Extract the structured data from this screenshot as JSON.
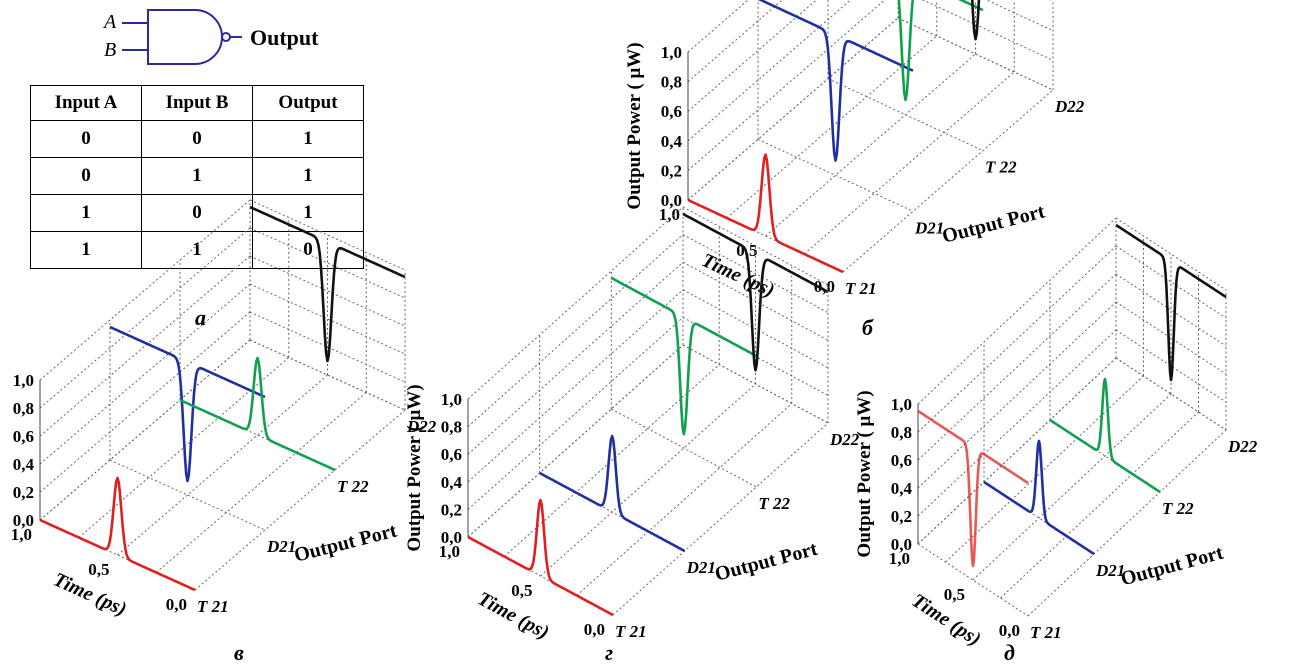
{
  "gate": {
    "input_a": "A",
    "input_b": "B",
    "output_label": "Output"
  },
  "truth_table": {
    "headers": [
      "Input A",
      "Input B",
      "Output"
    ],
    "rows": [
      [
        "0",
        "0",
        "1"
      ],
      [
        "0",
        "1",
        "1"
      ],
      [
        "1",
        "0",
        "1"
      ],
      [
        "1",
        "1",
        "0"
      ]
    ]
  },
  "captions": [
    "a",
    "б",
    "в",
    "г",
    "д"
  ],
  "colors": {
    "T21": "#e02020",
    "D21": "#2030a0",
    "T22": "#10a050",
    "D22": "#111111"
  },
  "chart_data": [
    {
      "type": "line",
      "panel": "б",
      "ylabel": "Output Power ( μW)",
      "xlabel": "Time (ps)",
      "zlabel": "Output Port",
      "ports": [
        "T21",
        "D21",
        "T22",
        "D22"
      ],
      "time_ticks": [
        "1,0",
        "0,5",
        "0,0"
      ],
      "power_ticks": [
        "0,0",
        "0,2",
        "0,4",
        "0,6",
        "0,8",
        "1,0"
      ],
      "ylim": [
        0,
        1
      ],
      "series": [
        {
          "port": "T21",
          "shape": "peak",
          "base": 0.0,
          "extreme": 0.55
        },
        {
          "port": "D21",
          "shape": "dip",
          "base": 0.95,
          "extreme": 0.1
        },
        {
          "port": "T22",
          "shape": "dip",
          "base": 0.95,
          "extreme": 0.1
        },
        {
          "port": "D22",
          "shape": "dip",
          "base": 0.95,
          "extreme": 0.1
        }
      ]
    },
    {
      "type": "line",
      "panel": "в",
      "ylabel": "Output Power ( μW)",
      "xlabel": "Time (ps)",
      "zlabel": "Output Port",
      "ports": [
        "T21",
        "D21",
        "T22",
        "D22"
      ],
      "time_ticks": [
        "1,0",
        "0,5",
        "0,0"
      ],
      "power_ticks": [
        "0,0",
        "0,2",
        "0,4",
        "0,6",
        "0,8",
        "1,0"
      ],
      "ylim": [
        0,
        1
      ],
      "series": [
        {
          "port": "T21",
          "shape": "peak",
          "base": 0.0,
          "extreme": 0.55
        },
        {
          "port": "D21",
          "shape": "dip",
          "base": 0.95,
          "extreme": 0.1
        },
        {
          "port": "T22",
          "shape": "peak",
          "base": 0.0,
          "extreme": 0.55
        },
        {
          "port": "D22",
          "shape": "dip",
          "base": 0.95,
          "extreme": 0.1
        }
      ]
    },
    {
      "type": "line",
      "panel": "г",
      "ylabel": "Output Power ( μW)",
      "xlabel": "Time (ps)",
      "zlabel": "Output Port",
      "ports": [
        "T21",
        "D21",
        "T22",
        "D22"
      ],
      "time_ticks": [
        "1,0",
        "0,5",
        "0,0"
      ],
      "power_ticks": [
        "0,0",
        "0,2",
        "0,4",
        "0,6",
        "0,8",
        "1,0"
      ],
      "ylim": [
        0,
        1
      ],
      "series": [
        {
          "port": "T21",
          "shape": "peak",
          "base": 0.0,
          "extreme": 0.55
        },
        {
          "port": "D21",
          "shape": "peak",
          "base": 0.0,
          "extreme": 0.55
        },
        {
          "port": "T22",
          "shape": "dip",
          "base": 0.95,
          "extreme": 0.1
        },
        {
          "port": "D22",
          "shape": "dip",
          "base": 0.95,
          "extreme": 0.1
        }
      ]
    },
    {
      "type": "line",
      "panel": "д",
      "ylabel": "Output Power ( μW)",
      "xlabel": "Time (ps)",
      "zlabel": "Output Port",
      "ports": [
        "T21",
        "D21",
        "T22",
        "D22"
      ],
      "time_ticks": [
        "1,0",
        "0,5",
        "0,0"
      ],
      "power_ticks": [
        "0,0",
        "0,2",
        "0,4",
        "0,6",
        "0,8",
        "1,0"
      ],
      "ylim": [
        0,
        1
      ],
      "series": [
        {
          "port": "T21",
          "shape": "dip",
          "base": 0.95,
          "extreme": 0.1
        },
        {
          "port": "D21",
          "shape": "peak",
          "base": 0.0,
          "extreme": 0.55
        },
        {
          "port": "T22",
          "shape": "peak",
          "base": 0.0,
          "extreme": 0.55
        },
        {
          "port": "D22",
          "shape": "dip",
          "base": 0.95,
          "extreme": 0.1
        }
      ]
    }
  ]
}
